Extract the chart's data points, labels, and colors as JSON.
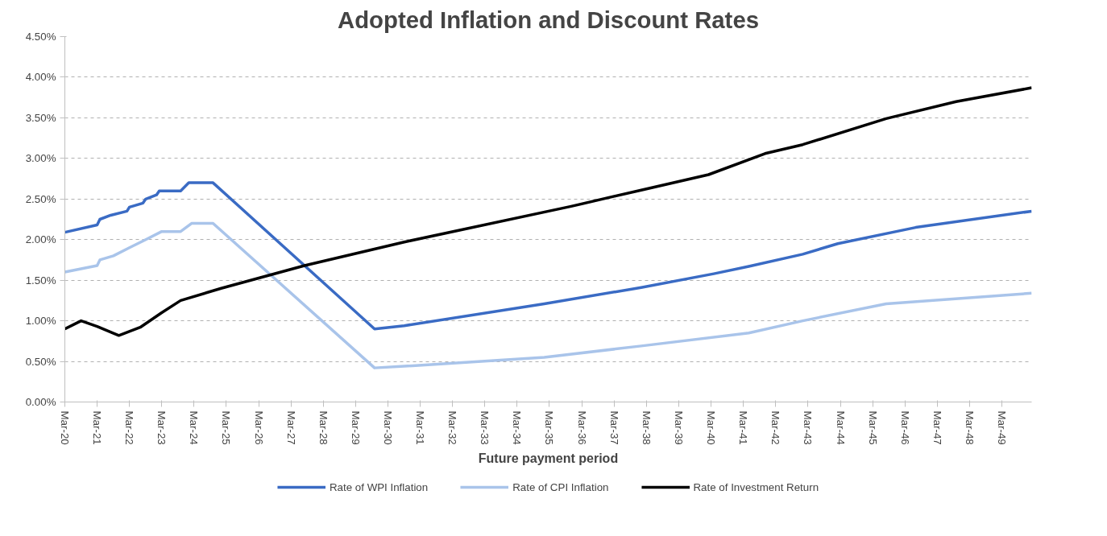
{
  "chart_data": {
    "type": "line",
    "title": "Adopted Inflation and Discount Rates",
    "xlabel": "Future payment period",
    "xlim": [
      "2020-03",
      "2050-02"
    ],
    "xticks": [
      {
        "value": "2020-03",
        "label": "Mar-20"
      },
      {
        "value": "2021-03",
        "label": "Mar-21"
      },
      {
        "value": "2022-03",
        "label": "Mar-22"
      },
      {
        "value": "2023-03",
        "label": "Mar-23"
      },
      {
        "value": "2024-03",
        "label": "Mar-24"
      },
      {
        "value": "2025-03",
        "label": "Mar-25"
      },
      {
        "value": "2026-03",
        "label": "Mar-26"
      },
      {
        "value": "2027-03",
        "label": "Mar-27"
      },
      {
        "value": "2028-03",
        "label": "Mar-28"
      },
      {
        "value": "2029-03",
        "label": "Mar-29"
      },
      {
        "value": "2030-03",
        "label": "Mar-30"
      },
      {
        "value": "2031-03",
        "label": "Mar-31"
      },
      {
        "value": "2032-03",
        "label": "Mar-32"
      },
      {
        "value": "2033-03",
        "label": "Mar-33"
      },
      {
        "value": "2034-03",
        "label": "Mar-34"
      },
      {
        "value": "2035-03",
        "label": "Mar-35"
      },
      {
        "value": "2036-03",
        "label": "Mar-36"
      },
      {
        "value": "2037-03",
        "label": "Mar-37"
      },
      {
        "value": "2038-03",
        "label": "Mar-38"
      },
      {
        "value": "2039-03",
        "label": "Mar-39"
      },
      {
        "value": "2040-03",
        "label": "Mar-40"
      },
      {
        "value": "2041-03",
        "label": "Mar-41"
      },
      {
        "value": "2042-03",
        "label": "Mar-42"
      },
      {
        "value": "2043-03",
        "label": "Mar-43"
      },
      {
        "value": "2044-03",
        "label": "Mar-44"
      },
      {
        "value": "2045-03",
        "label": "Mar-45"
      },
      {
        "value": "2046-03",
        "label": "Mar-46"
      },
      {
        "value": "2047-03",
        "label": "Mar-47"
      },
      {
        "value": "2048-03",
        "label": "Mar-48"
      },
      {
        "value": "2049-03",
        "label": "Mar-49"
      }
    ],
    "ylim": [
      0,
      4.5
    ],
    "yticks": [
      {
        "value": 0,
        "label": "0.00%"
      },
      {
        "value": 0.5,
        "label": "0.50%"
      },
      {
        "value": 1,
        "label": "1.00%"
      },
      {
        "value": 1.5,
        "label": "1.50%"
      },
      {
        "value": 2,
        "label": "2.00%"
      },
      {
        "value": 2.5,
        "label": "2.50%"
      },
      {
        "value": 3,
        "label": "3.00%"
      },
      {
        "value": 3.5,
        "label": "3.50%"
      },
      {
        "value": 4,
        "label": "4.00%"
      },
      {
        "value": 4.5,
        "label": "4.50%"
      }
    ],
    "grid": "y",
    "legend": "bottom",
    "series": [
      {
        "name": "Rate of WPI Inflation",
        "color": "#3a6bc4",
        "x": [
          "2020-03",
          "2021-03",
          "2021-04",
          "2021-08",
          "2022-02",
          "2022-03",
          "2022-08",
          "2022-09",
          "2023-01",
          "2023-02",
          "2023-10",
          "2024-01",
          "2024-10",
          "2029-10",
          "2030-09",
          "2035-01",
          "2038-01",
          "2040-04",
          "2041-05",
          "2043-01",
          "2044-02",
          "2046-07",
          "2050-02"
        ],
        "values": [
          2.09,
          2.18,
          2.25,
          2.3,
          2.35,
          2.4,
          2.45,
          2.5,
          2.55,
          2.6,
          2.6,
          2.7,
          2.7,
          0.9,
          0.94,
          1.21,
          1.41,
          1.58,
          1.67,
          1.82,
          1.95,
          2.15,
          2.35
        ]
      },
      {
        "name": "Rate of CPI Inflation",
        "color": "#a9c4ea",
        "x": [
          "2020-03",
          "2021-03",
          "2021-04",
          "2021-09",
          "2022-03",
          "2022-09",
          "2023-03",
          "2023-10",
          "2024-02",
          "2024-10",
          "2029-10",
          "2030-09",
          "2035-01",
          "2038-01",
          "2041-05",
          "2043-01",
          "2045-08",
          "2050-02"
        ],
        "values": [
          1.6,
          1.68,
          1.75,
          1.8,
          1.9,
          2.0,
          2.1,
          2.1,
          2.2,
          2.2,
          0.42,
          0.44,
          0.55,
          0.69,
          0.85,
          1.0,
          1.21,
          1.34
        ]
      },
      {
        "name": "Rate of Investment Return",
        "color": "#000000",
        "x": [
          "2020-03",
          "2020-09",
          "2021-03",
          "2021-11",
          "2022-07",
          "2023-03",
          "2023-10",
          "2025-01",
          "2027-08",
          "2030-09",
          "2035-11",
          "2038-01",
          "2040-02",
          "2041-11",
          "2043-01",
          "2045-08",
          "2047-10",
          "2050-02"
        ],
        "values": [
          0.9,
          1.0,
          0.93,
          0.82,
          0.92,
          1.1,
          1.25,
          1.4,
          1.68,
          1.97,
          2.41,
          2.61,
          2.8,
          3.06,
          3.17,
          3.49,
          3.7,
          3.87
        ]
      }
    ]
  }
}
